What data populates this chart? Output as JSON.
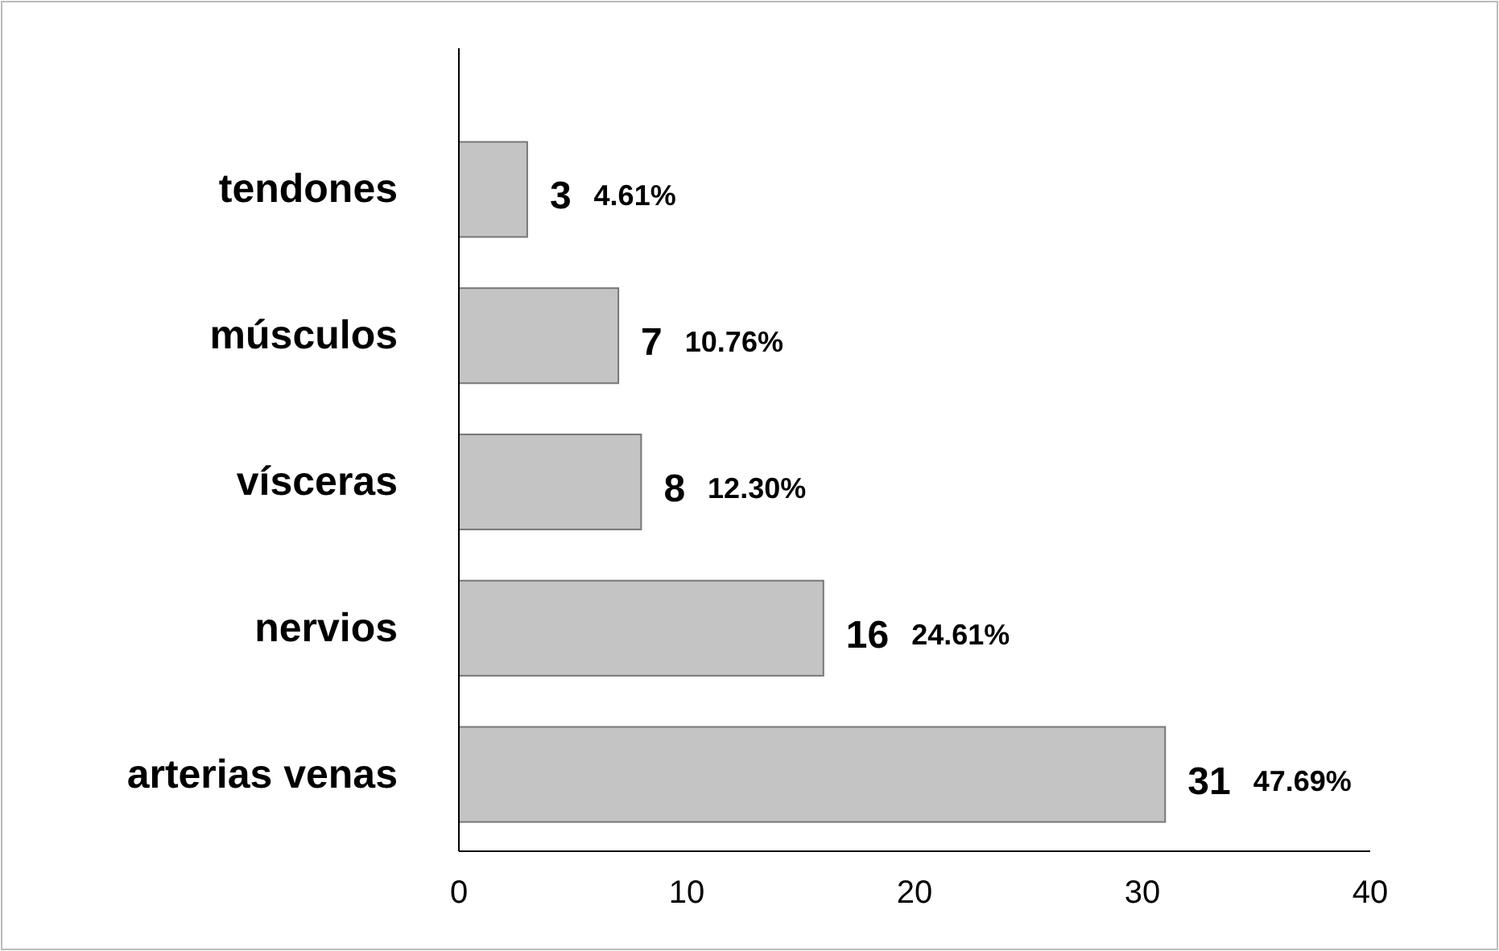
{
  "chart_data": {
    "type": "bar",
    "orientation": "horizontal",
    "categories": [
      "tendones",
      "músculos",
      "vísceras",
      "nervios",
      "arterias venas"
    ],
    "values": [
      3,
      7,
      8,
      16,
      31
    ],
    "color": "#c4c4c4",
    "value_labels": [
      "3 4.61%",
      "7 10.76%",
      "8 12.30%",
      "16 24.61%",
      "31 47.69%"
    ],
    "xlim": [
      0,
      40
    ],
    "xticks": [
      0,
      10,
      20,
      30,
      40
    ]
  }
}
